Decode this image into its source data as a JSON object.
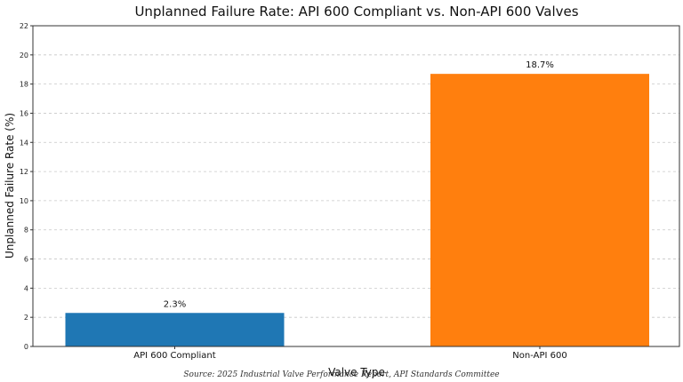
{
  "chart_data": {
    "type": "bar",
    "title": "Unplanned Failure Rate: API 600 Compliant vs. Non-API 600 Valves",
    "xlabel": "Valve Type",
    "ylabel": "Unplanned Failure Rate (%)",
    "categories": [
      "API 600 Compliant",
      "Non-API 600"
    ],
    "values": [
      2.3,
      18.7
    ],
    "data_labels": [
      "2.3%",
      "18.7%"
    ],
    "colors": [
      "#1f77b4",
      "#ff7f0e"
    ],
    "ylim": [
      0,
      22
    ],
    "yticks": [
      0,
      2,
      4,
      6,
      8,
      10,
      12,
      14,
      16,
      18,
      20,
      22
    ],
    "grid": "horizontal-dashed",
    "legend": "none"
  },
  "footer": {
    "source": "Source: 2025 Industrial Valve Performance Report, API Standards Committee"
  }
}
